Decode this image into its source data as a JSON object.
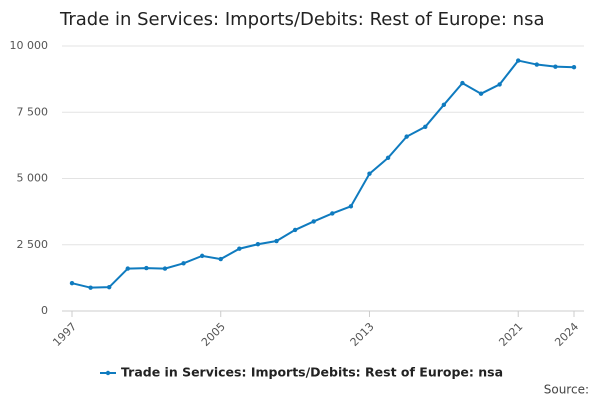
{
  "chart_data": {
    "type": "line",
    "title": "Trade in Services: Imports/Debits: Rest of Europe: nsa",
    "x": [
      1997,
      1998,
      1999,
      2000,
      2001,
      2002,
      2003,
      2004,
      2005,
      2006,
      2007,
      2008,
      2009,
      2010,
      2011,
      2012,
      2013,
      2014,
      2015,
      2016,
      2017,
      2018,
      2019,
      2020,
      2021,
      2022,
      2023,
      2024
    ],
    "series": [
      {
        "name": "Trade in Services: Imports/Debits: Rest of Europe: nsa",
        "color": "#0f7bbf",
        "values": [
          1050,
          880,
          900,
          1600,
          1620,
          1600,
          1800,
          2080,
          1960,
          2350,
          2520,
          2640,
          3060,
          3380,
          3680,
          3950,
          5180,
          5780,
          6580,
          6950,
          7780,
          8600,
          8200,
          8550,
          9450,
          9300,
          9220,
          9200
        ]
      }
    ],
    "xlim": [
      1997,
      2024
    ],
    "xticks": [
      1997,
      2005,
      2013,
      2021,
      2024
    ],
    "ylim": [
      0,
      10000
    ],
    "yticks": [
      0,
      {
        "value": 2500,
        "label": "2 500"
      },
      {
        "value": 5000,
        "label": "5 000"
      },
      {
        "value": 7500,
        "label": "7 500"
      },
      {
        "value": 10000,
        "label": "10 000"
      }
    ],
    "grid": true,
    "source": "Source:"
  }
}
